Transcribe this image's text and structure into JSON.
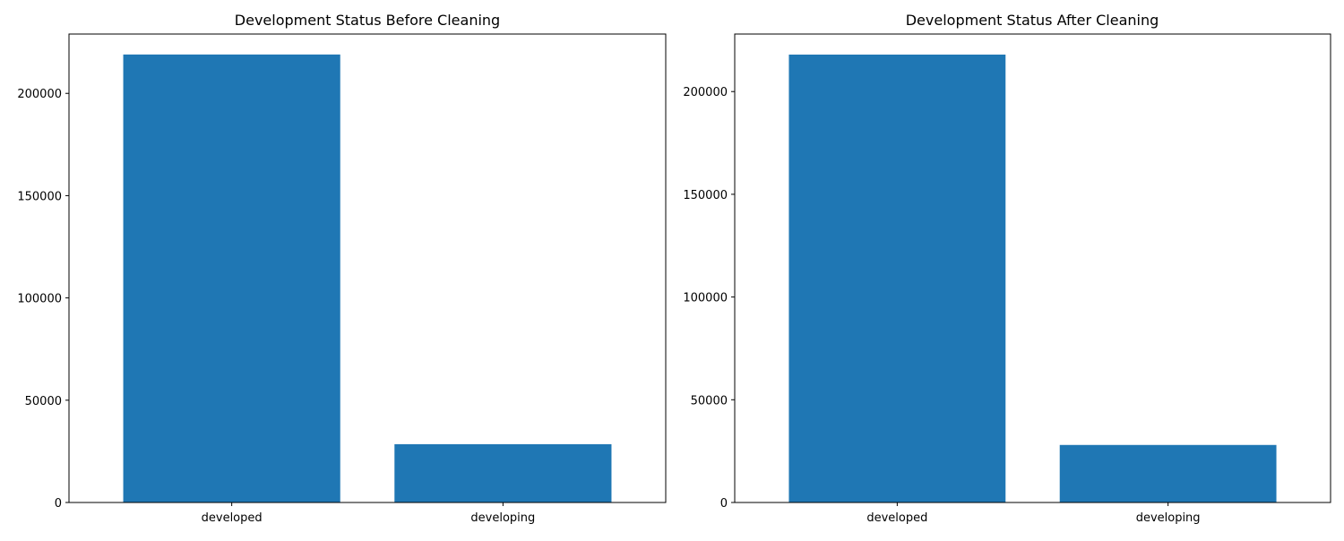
{
  "chart_data": [
    {
      "type": "bar",
      "title": "Development Status Before Cleaning",
      "categories": [
        "developed",
        "developing"
      ],
      "values": [
        219000,
        28500
      ],
      "yticks": [
        "0",
        "50000",
        "100000",
        "150000",
        "200000"
      ],
      "ytick_values": [
        0,
        50000,
        100000,
        150000,
        200000
      ],
      "ylim": [
        0,
        229000
      ],
      "bar_color": "#1f77b4",
      "grid": false
    },
    {
      "type": "bar",
      "title": "Development Status After Cleaning",
      "categories": [
        "developed",
        "developing"
      ],
      "values": [
        218000,
        28000
      ],
      "yticks": [
        "0",
        "50000",
        "100000",
        "150000",
        "200000"
      ],
      "ytick_values": [
        0,
        50000,
        100000,
        150000,
        200000
      ],
      "ylim": [
        0,
        228000
      ],
      "bar_color": "#1f77b4",
      "grid": false
    }
  ]
}
